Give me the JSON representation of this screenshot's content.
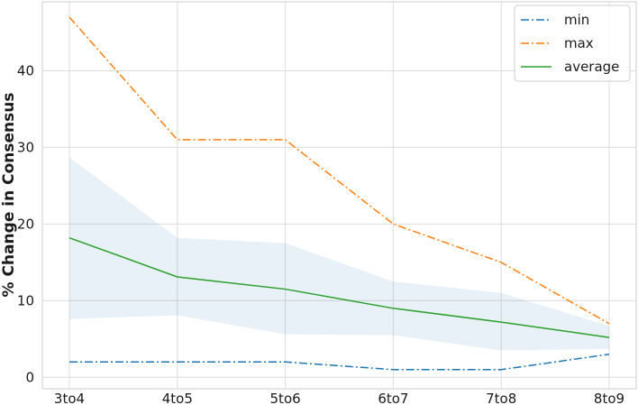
{
  "chart_data": {
    "type": "line",
    "categories": [
      "3to4",
      "4to5",
      "5to6",
      "6to7",
      "7to8",
      "8to9"
    ],
    "ylabel": "% Change in Consensus",
    "xlabel": "",
    "ylim": [
      -1.5,
      49
    ],
    "yticks": [
      0,
      10,
      20,
      30,
      40
    ],
    "grid": true,
    "legend_position": "top-right",
    "series": [
      {
        "name": "min",
        "values": [
          2,
          2,
          2,
          1,
          1,
          3
        ],
        "color": "#1f77b4",
        "style": "dash-dot"
      },
      {
        "name": "max",
        "values": [
          47,
          31,
          31,
          20,
          15,
          7
        ],
        "color": "#ff7f0e",
        "style": "dash-dot"
      },
      {
        "name": "average",
        "values": [
          18.2,
          13.1,
          11.5,
          9.0,
          7.2,
          5.2
        ],
        "color": "#2ca02c",
        "style": "solid"
      }
    ],
    "band": {
      "upper": [
        28.7,
        18.2,
        17.5,
        12.5,
        11.0,
        6.7
      ],
      "lower": [
        7.6,
        8.1,
        5.6,
        5.5,
        3.5,
        3.7
      ],
      "color": "#1f77b4",
      "opacity": 0.1
    }
  }
}
